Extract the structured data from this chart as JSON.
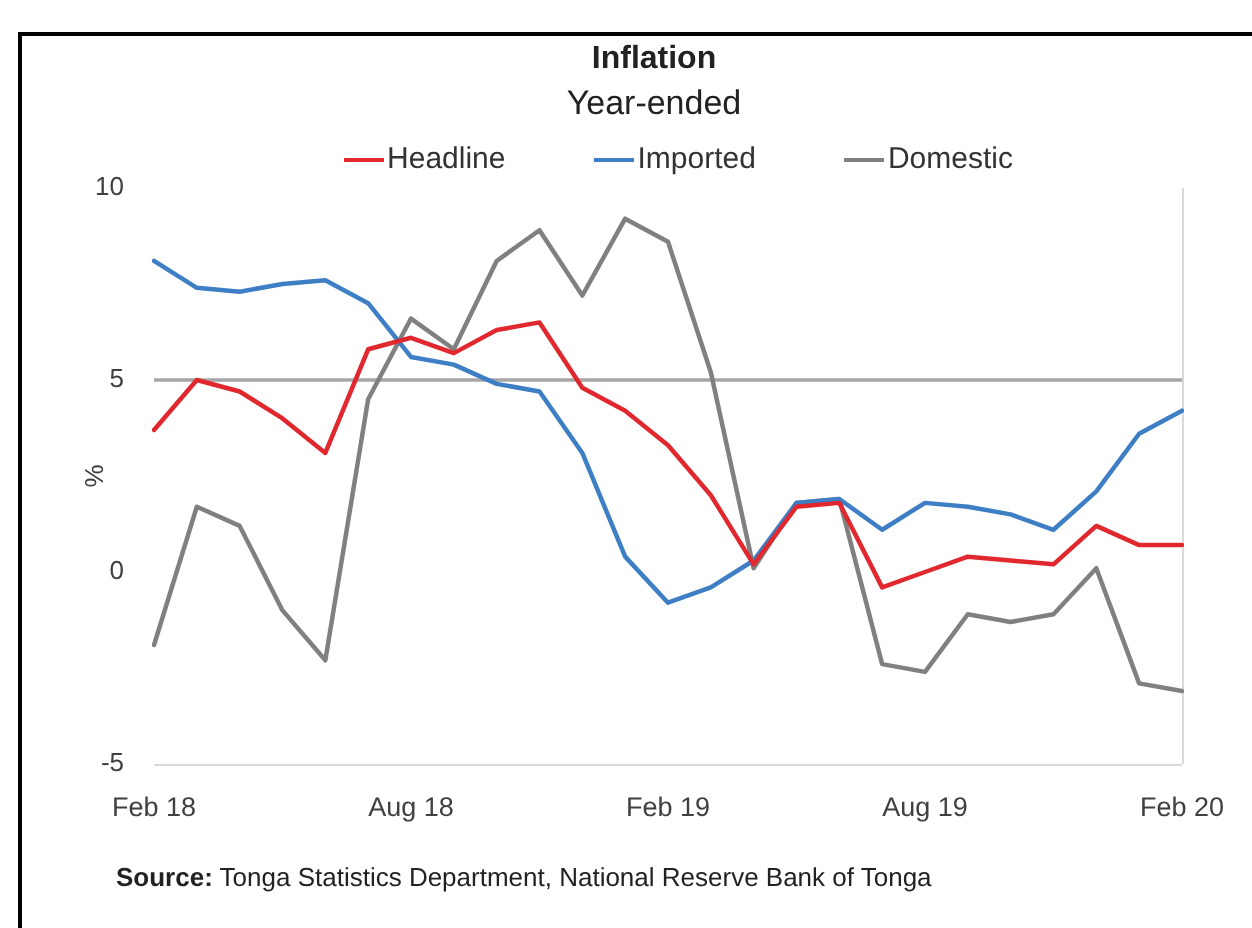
{
  "chart_data": {
    "type": "line",
    "title": "Inflation",
    "subtitle": "Year-ended",
    "ylabel": "%",
    "categories": [
      "Feb 18",
      null,
      null,
      null,
      null,
      null,
      "Aug 18",
      null,
      null,
      null,
      null,
      null,
      "Feb 19",
      null,
      null,
      null,
      null,
      null,
      "Aug 19",
      null,
      null,
      null,
      null,
      null,
      "Feb 20"
    ],
    "series": [
      {
        "name": "Headline",
        "color": "#e0282e",
        "values": [
          3.7,
          5.0,
          4.7,
          4.0,
          3.1,
          5.8,
          6.1,
          5.7,
          6.3,
          6.5,
          4.8,
          4.2,
          3.3,
          2.0,
          0.2,
          1.7,
          1.8,
          -0.4,
          0.0,
          0.4,
          0.3,
          0.2,
          1.2,
          0.7,
          0.7
        ]
      },
      {
        "name": "Imported",
        "color": "#3d7ec4",
        "values": [
          8.1,
          7.4,
          7.3,
          7.5,
          7.6,
          7.0,
          5.6,
          5.4,
          4.9,
          4.7,
          3.1,
          0.4,
          -0.8,
          -0.4,
          0.3,
          1.8,
          1.9,
          1.1,
          1.8,
          1.7,
          1.5,
          1.1,
          2.1,
          3.6,
          4.2
        ]
      },
      {
        "name": "Domestic",
        "color": "#808080",
        "values": [
          -1.9,
          1.7,
          1.2,
          -1.0,
          -2.3,
          4.5,
          6.6,
          5.8,
          8.1,
          8.9,
          7.2,
          9.2,
          8.6,
          5.2,
          0.1,
          1.8,
          1.9,
          -2.4,
          -2.6,
          -1.1,
          -1.3,
          -1.1,
          0.1,
          -2.9,
          -3.1
        ]
      }
    ],
    "ylim": [
      -5,
      10
    ],
    "yticks": [
      -5,
      0,
      5,
      10
    ],
    "legend": "top",
    "marker": "none",
    "line_style": "solid",
    "ref_lines": [
      {
        "axis": "y",
        "value": 5,
        "color": "#a6a6a6"
      }
    ],
    "annotations": [
      "Source: Tonga Statistics Department, National Reserve Bank of Tonga"
    ]
  }
}
